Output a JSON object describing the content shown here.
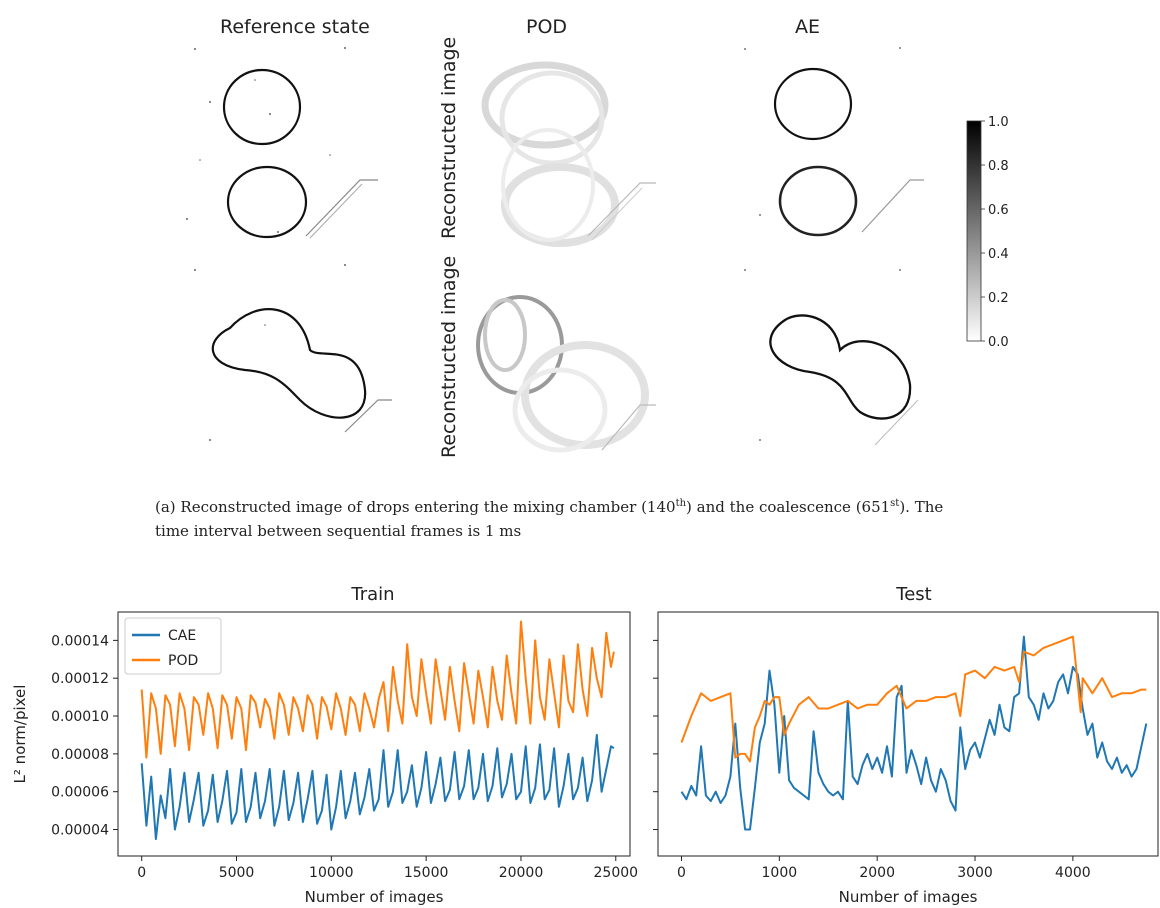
{
  "figure_a": {
    "column_titles": [
      "Reference state",
      "POD",
      "AE"
    ],
    "row_label": "Reconstructed image",
    "colorbar": {
      "ticks": [
        "1.0",
        "0.8",
        "0.6",
        "0.4",
        "0.2",
        "0.0"
      ],
      "range": [
        0.0,
        1.0
      ],
      "colormap": "gray_r"
    },
    "caption": {
      "prefix": "(a)  Reconstructed image of drops entering the mixing chamber (140",
      "sup1": "th",
      "middle": ") and the coalescence (651",
      "sup2": "st",
      "suffix": "). The",
      "line2": "time interval between sequential frames is 1 ms"
    }
  },
  "chart_data": [
    {
      "type": "line",
      "title": "Train",
      "xlabel": "Number of images",
      "ylabel": "L² norm/pixel",
      "xlim": [
        -1250,
        25750
      ],
      "ylim": [
        2.6e-05,
        0.000155
      ],
      "xticks": [
        0,
        5000,
        10000,
        15000,
        20000,
        25000
      ],
      "yticks": [
        4e-05,
        6e-05,
        8e-05,
        0.0001,
        0.00012,
        0.00014
      ],
      "ytick_labels": [
        "0.00004",
        "0.00006",
        "0.00008",
        "0.00010",
        "0.00012",
        "0.00014"
      ],
      "legend": {
        "position": "upper-left",
        "entries": [
          "CAE",
          "POD"
        ]
      },
      "series": [
        {
          "name": "CAE",
          "color": "#1f77b4",
          "x": [
            0,
            250,
            500,
            750,
            1000,
            1250,
            1500,
            1750,
            2000,
            2250,
            2500,
            2750,
            3000,
            3250,
            3500,
            3750,
            4000,
            4250,
            4500,
            4750,
            5000,
            5250,
            5500,
            5750,
            6000,
            6250,
            6500,
            6750,
            7000,
            7250,
            7500,
            7750,
            8000,
            8250,
            8500,
            8750,
            9000,
            9250,
            9500,
            9750,
            10000,
            10250,
            10500,
            10750,
            11000,
            11250,
            11500,
            11750,
            12000,
            12250,
            12500,
            12750,
            13000,
            13250,
            13500,
            13750,
            14000,
            14250,
            14500,
            14750,
            15000,
            15250,
            15500,
            15750,
            16000,
            16250,
            16500,
            16750,
            17000,
            17250,
            17500,
            17750,
            18000,
            18250,
            18500,
            18750,
            19000,
            19250,
            19500,
            19750,
            20000,
            20250,
            20500,
            20750,
            21000,
            21250,
            21500,
            21750,
            22000,
            22250,
            22500,
            22750,
            23000,
            23250,
            23500,
            23750,
            24000,
            24250,
            24500,
            24750,
            24900
          ],
          "y": [
            7.5e-05,
            4.2e-05,
            6.8e-05,
            3.5e-05,
            5.8e-05,
            4.6e-05,
            7.2e-05,
            4e-05,
            5.2e-05,
            7e-05,
            4.4e-05,
            5.6e-05,
            7e-05,
            4.2e-05,
            5e-05,
            6.9e-05,
            4.4e-05,
            5.5e-05,
            7.1e-05,
            4.3e-05,
            4.9e-05,
            7.2e-05,
            4.4e-05,
            5.2e-05,
            7e-05,
            4.6e-05,
            5.5e-05,
            7.2e-05,
            4.2e-05,
            5.2e-05,
            7.1e-05,
            4.5e-05,
            5.4e-05,
            7e-05,
            4.4e-05,
            5.6e-05,
            7.1e-05,
            4.3e-05,
            5e-05,
            6.9e-05,
            4e-05,
            5.2e-05,
            7.1e-05,
            4.6e-05,
            5.5e-05,
            7e-05,
            4.8e-05,
            5.7e-05,
            7.2e-05,
            5e-05,
            5.6e-05,
            8.2e-05,
            5.2e-05,
            6e-05,
            8.2e-05,
            5.4e-05,
            6e-05,
            7.4e-05,
            5.2e-05,
            6.2e-05,
            8.1e-05,
            5.4e-05,
            6.4e-05,
            7.8e-05,
            5.5e-05,
            6.1e-05,
            8.1e-05,
            5.6e-05,
            6.3e-05,
            8.2e-05,
            5.6e-05,
            6.2e-05,
            8e-05,
            5.5e-05,
            6.3e-05,
            8.3e-05,
            5.7e-05,
            6.4e-05,
            8e-05,
            5.6e-05,
            6e-05,
            8.4e-05,
            5.4e-05,
            6.2e-05,
            8.5e-05,
            5.6e-05,
            6.1e-05,
            8.3e-05,
            5.2e-05,
            6.3e-05,
            8e-05,
            5.6e-05,
            6.2e-05,
            7.8e-05,
            5.5e-05,
            6.6e-05,
            9e-05,
            6e-05,
            7.2e-05,
            8.4e-05,
            8.3e-05
          ]
        },
        {
          "name": "POD",
          "color": "#ff7f0e",
          "x": [
            0,
            250,
            500,
            750,
            1000,
            1250,
            1500,
            1750,
            2000,
            2250,
            2500,
            2750,
            3000,
            3250,
            3500,
            3750,
            4000,
            4250,
            4500,
            4750,
            5000,
            5250,
            5500,
            5750,
            6000,
            6250,
            6500,
            6750,
            7000,
            7250,
            7500,
            7750,
            8000,
            8250,
            8500,
            8750,
            9000,
            9250,
            9500,
            9750,
            10000,
            10250,
            10500,
            10750,
            11000,
            11250,
            11500,
            11750,
            12000,
            12250,
            12500,
            12750,
            13000,
            13250,
            13500,
            13750,
            14000,
            14250,
            14500,
            14750,
            15000,
            15250,
            15500,
            15750,
            16000,
            16250,
            16500,
            16750,
            17000,
            17250,
            17500,
            17750,
            18000,
            18250,
            18500,
            18750,
            19000,
            19250,
            19500,
            19750,
            20000,
            20250,
            20500,
            20750,
            21000,
            21250,
            21500,
            21750,
            22000,
            22250,
            22500,
            22750,
            23000,
            23250,
            23500,
            23750,
            24000,
            24250,
            24500,
            24750,
            24900
          ],
          "y": [
            0.000114,
            7.8e-05,
            0.000112,
            0.000104,
            8e-05,
            0.000111,
            0.000106,
            8.4e-05,
            0.000112,
            0.000104,
            8.2e-05,
            0.00011,
            0.000106,
            9e-05,
            0.000112,
            0.000104,
            8.3e-05,
            0.000111,
            0.000106,
            8.8e-05,
            0.00011,
            0.000104,
            8.2e-05,
            0.000111,
            0.000107,
            9.4e-05,
            0.000109,
            0.000104,
            8.8e-05,
            0.000112,
            0.000106,
            9e-05,
            0.00011,
            0.000104,
            9.2e-05,
            0.000111,
            0.000106,
            8.8e-05,
            0.00011,
            0.000105,
            9.3e-05,
            0.000112,
            0.000104,
            9e-05,
            0.00011,
            0.000106,
            9.2e-05,
            0.000112,
            0.000104,
            9.4e-05,
            0.000109,
            0.000118,
            9.2e-05,
            0.000126,
            0.000108,
            9.6e-05,
            0.000138,
            0.00011,
            0.0001,
            0.00013,
            0.000112,
            9.6e-05,
            0.00013,
            0.000114,
            9.8e-05,
            0.000126,
            0.000108,
            9.2e-05,
            0.000128,
            0.000112,
            9.6e-05,
            0.000124,
            0.00011,
            9.4e-05,
            0.000126,
            0.000108,
            9.8e-05,
            0.000132,
            0.000112,
            9.6e-05,
            0.00015,
            0.00012,
            9.6e-05,
            0.00014,
            0.00011,
            9.8e-05,
            0.00013,
            0.000112,
            9.4e-05,
            0.000132,
            0.000108,
            0.000102,
            0.000138,
            0.000114,
            0.0001,
            0.000136,
            0.00012,
            0.00011,
            0.000144,
            0.000126,
            0.000134
          ]
        }
      ]
    },
    {
      "type": "line",
      "title": "Test",
      "xlabel": "Number of images",
      "ylabel": "",
      "xlim": [
        -240,
        4870
      ],
      "ylim": [
        2.6e-05,
        0.000155
      ],
      "xticks": [
        0,
        1000,
        2000,
        3000,
        4000
      ],
      "yticks": [
        4e-05,
        6e-05,
        8e-05,
        0.0001,
        0.00012,
        0.00014
      ],
      "ytick_labels": [],
      "series": [
        {
          "name": "CAE",
          "color": "#1f77b4",
          "x": [
            0,
            50,
            100,
            150,
            200,
            250,
            300,
            350,
            400,
            450,
            500,
            550,
            600,
            650,
            700,
            750,
            800,
            850,
            900,
            950,
            1000,
            1050,
            1100,
            1150,
            1200,
            1250,
            1300,
            1350,
            1400,
            1450,
            1500,
            1550,
            1600,
            1650,
            1700,
            1750,
            1800,
            1850,
            1900,
            1950,
            2000,
            2050,
            2100,
            2150,
            2200,
            2250,
            2300,
            2350,
            2400,
            2450,
            2500,
            2550,
            2600,
            2650,
            2700,
            2750,
            2800,
            2850,
            2900,
            2950,
            3000,
            3050,
            3100,
            3150,
            3200,
            3250,
            3300,
            3350,
            3400,
            3450,
            3500,
            3550,
            3600,
            3650,
            3700,
            3750,
            3800,
            3850,
            3900,
            3950,
            4000,
            4050,
            4100,
            4150,
            4200,
            4250,
            4300,
            4350,
            4400,
            4450,
            4500,
            4550,
            4600,
            4650,
            4700,
            4750
          ],
          "y": [
            6e-05,
            5.6e-05,
            6.3e-05,
            5.8e-05,
            8.4e-05,
            5.8e-05,
            5.5e-05,
            6e-05,
            5.4e-05,
            5.8e-05,
            6.8e-05,
            9.6e-05,
            6.2e-05,
            4e-05,
            4e-05,
            6.2e-05,
            8.6e-05,
            9.6e-05,
            0.000124,
            0.000106,
            7e-05,
            0.0001,
            6.6e-05,
            6.2e-05,
            6e-05,
            5.8e-05,
            5.6e-05,
            9.2e-05,
            7e-05,
            6.4e-05,
            6e-05,
            5.8e-05,
            6e-05,
            5.6e-05,
            0.000108,
            6.8e-05,
            6.4e-05,
            7.4e-05,
            8e-05,
            7.2e-05,
            7.8e-05,
            7e-05,
            8.4e-05,
            6.8e-05,
            0.00011,
            0.000116,
            7e-05,
            8.2e-05,
            7.4e-05,
            6.4e-05,
            7.8e-05,
            6.6e-05,
            6e-05,
            7.2e-05,
            6.6e-05,
            5.5e-05,
            5e-05,
            9.4e-05,
            7.2e-05,
            8.2e-05,
            8.6e-05,
            7.8e-05,
            8.8e-05,
            9.8e-05,
            9e-05,
            0.000106,
            9.4e-05,
            9.2e-05,
            0.00011,
            0.000112,
            0.000142,
            0.00011,
            0.000106,
            9.8e-05,
            0.000112,
            0.000104,
            0.000108,
            0.000118,
            0.000122,
            0.000112,
            0.000126,
            0.000122,
            0.000104,
            9e-05,
            9.6e-05,
            7.8e-05,
            8.6e-05,
            7.6e-05,
            7.2e-05,
            7.8e-05,
            7e-05,
            7.4e-05,
            6.8e-05,
            7.2e-05,
            8.4e-05,
            9.6e-05
          ]
        },
        {
          "name": "POD",
          "color": "#ff7f0e",
          "x": [
            0,
            100,
            200,
            300,
            400,
            500,
            550,
            600,
            650,
            700,
            750,
            800,
            850,
            900,
            950,
            1000,
            1050,
            1100,
            1200,
            1300,
            1400,
            1500,
            1600,
            1700,
            1800,
            1900,
            2000,
            2100,
            2200,
            2300,
            2350,
            2400,
            2500,
            2600,
            2700,
            2800,
            2850,
            2900,
            3000,
            3100,
            3200,
            3300,
            3400,
            3450,
            3500,
            3600,
            3700,
            3800,
            3900,
            4000,
            4080,
            4100,
            4200,
            4300,
            4400,
            4500,
            4600,
            4700,
            4750
          ],
          "y": [
            8.6e-05,
            0.0001,
            0.000112,
            0.000108,
            0.00011,
            0.000112,
            7.8e-05,
            8e-05,
            8e-05,
            7.6e-05,
            9.4e-05,
            0.0001,
            0.000108,
            0.000106,
            0.00011,
            0.00011,
            9e-05,
            9.6e-05,
            0.000106,
            0.00011,
            0.000104,
            0.000104,
            0.000106,
            0.000108,
            0.000104,
            0.000106,
            0.000106,
            0.000112,
            0.000116,
            0.000104,
            0.000106,
            0.000108,
            0.000108,
            0.00011,
            0.00011,
            0.000112,
            0.0001,
            0.000122,
            0.000124,
            0.00012,
            0.000126,
            0.000124,
            0.000126,
            0.000118,
            0.000134,
            0.000132,
            0.000136,
            0.000138,
            0.00014,
            0.000142,
            0.000102,
            0.00012,
            0.000112,
            0.00012,
            0.00011,
            0.000112,
            0.000112,
            0.000114,
            0.000114
          ]
        }
      ]
    }
  ]
}
